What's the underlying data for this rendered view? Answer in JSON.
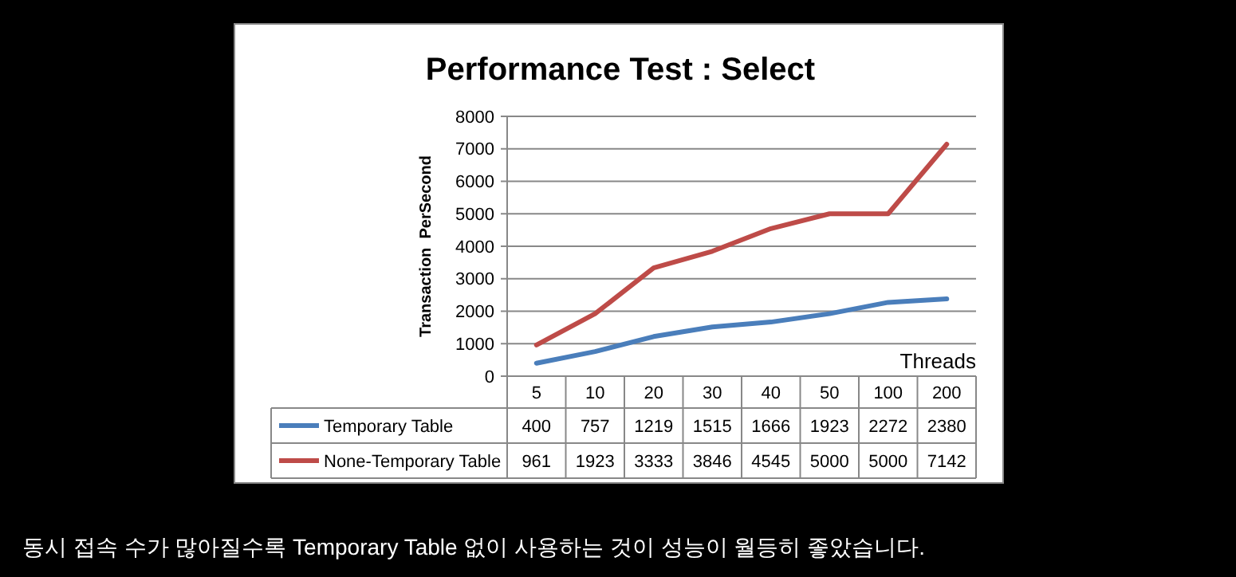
{
  "chart_data": {
    "type": "line",
    "title": "Performance Test : Select",
    "xlabel": "Threads",
    "ylabel": "Transaction  PerSecond",
    "categories": [
      "5",
      "10",
      "20",
      "30",
      "40",
      "50",
      "100",
      "200"
    ],
    "series": [
      {
        "name": "Temporary Table",
        "color": "#4a7ebb",
        "values": [
          400,
          757,
          1219,
          1515,
          1666,
          1923,
          2272,
          2380
        ]
      },
      {
        "name": "None-Temporary Table",
        "color": "#be4b48",
        "values": [
          961,
          1923,
          3333,
          3846,
          4545,
          5000,
          5000,
          7142
        ]
      }
    ],
    "ylim": [
      0,
      8000
    ],
    "yticks": [
      0,
      1000,
      2000,
      3000,
      4000,
      5000,
      6000,
      7000,
      8000
    ],
    "grid": "y",
    "legend": "bottom",
    "data_labels": true,
    "marker": "none",
    "line_style": "solid",
    "annotations": [
      "동시 접속 수가 많아질수록 Temporary Table 없이 사용하는 것이 성능이 월등히 좋았습니다."
    ]
  }
}
